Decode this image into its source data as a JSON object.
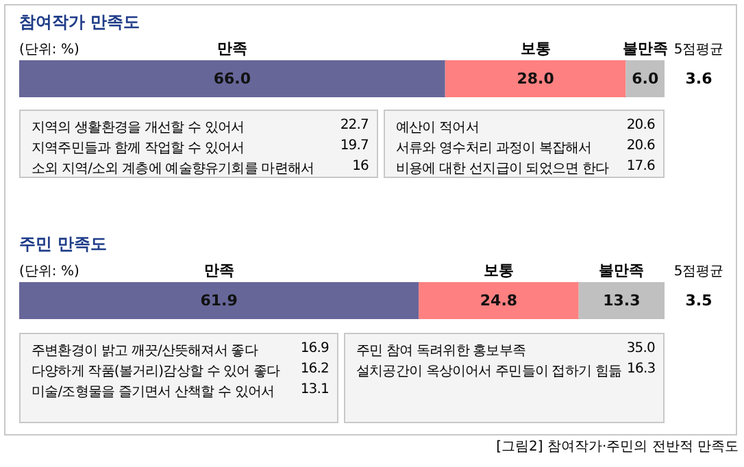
{
  "chart_data": [
    {
      "type": "bar",
      "title": "참여작가 만족도",
      "orientation": "horizontal",
      "stacked": true,
      "categories": [
        null
      ],
      "xlim": [
        0,
        100
      ],
      "tick_labels": false,
      "series": [
        {
          "name": "만족",
          "color": "#666699",
          "values": [
            66.0
          ],
          "value_labels": [
            "66.0"
          ]
        },
        {
          "name": "보통",
          "color": "#ff8080",
          "values": [
            28.0
          ],
          "value_labels": [
            "28.0"
          ]
        },
        {
          "name": "불만족",
          "color": "#c0c0c0",
          "values": [
            6.0
          ],
          "value_labels": [
            "6.0"
          ]
        }
      ],
      "annotations": [
        "(단위: %)",
        "5점평균",
        "3.6"
      ]
    },
    {
      "type": "other",
      "annotations": [
        "지역의 생활환경을 개선할 수 있어서 22.7",
        "지역주민들과 함께 작업할 수 있어서 19.7",
        "소외 지역/소외 계층에 예술향유기회를 마련해서 16"
      ]
    },
    {
      "type": "other",
      "annotations": [
        "예산이 적어서 20.6",
        "서류와 영수처리 과정이 복잡해서 20.6",
        "비용에 대한 선지급이 되었으면 한다 17.6"
      ]
    },
    {
      "type": "bar",
      "title": "주민 만족도",
      "orientation": "horizontal",
      "stacked": true,
      "categories": [
        null
      ],
      "xlim": [
        0,
        100
      ],
      "tick_labels": false,
      "series": [
        {
          "name": "만족",
          "color": "#666699",
          "values": [
            61.9
          ],
          "value_labels": [
            "61.9"
          ]
        },
        {
          "name": "보통",
          "color": "#ff8080",
          "values": [
            24.8
          ],
          "value_labels": [
            "24.8"
          ]
        },
        {
          "name": "불만족",
          "color": "#c0c0c0",
          "values": [
            13.3
          ],
          "value_labels": [
            "13.3"
          ]
        }
      ],
      "annotations": [
        "(단위: %)",
        "5점평균",
        "3.5",
        "[그림2] 참여작가·주민의 전반적 만족도"
      ]
    },
    {
      "type": "other",
      "annotations": [
        "주변환경이 밝고 깨끗/산뜻해져서 좋다 16.9",
        "다양하게 작품(볼거리)감상할 수 있어 좋다 16.2",
        "미술/조형물을 즐기면서 산책할 수 있어서 13.1"
      ]
    },
    {
      "type": "other",
      "annotations": [
        "주민 참여 독려위한 홍보부족 35.0",
        "설치공간이 옥상이어서 주민들이 접하기 힘듦 16.3"
      ]
    }
  ]
}
